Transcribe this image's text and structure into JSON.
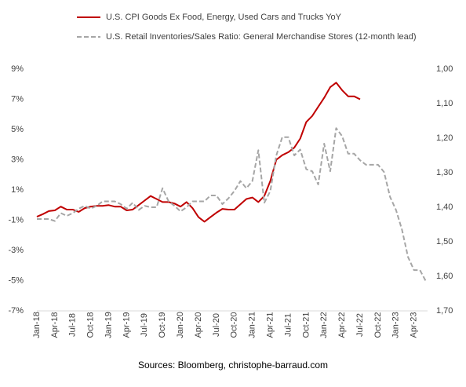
{
  "chart_data": {
    "type": "line",
    "source": "Sources: Bloomberg, christophe-barraud.com",
    "categories": [
      "Jan-18",
      null,
      null,
      "Apr-18",
      null,
      null,
      "Jul-18",
      null,
      null,
      "Oct-18",
      null,
      null,
      "Jan-19",
      null,
      null,
      "Apr-19",
      null,
      null,
      "Jul-19",
      null,
      null,
      "Oct-19",
      null,
      null,
      "Jan-20",
      null,
      null,
      "Apr-20",
      null,
      null,
      "Jul-20",
      null,
      null,
      "Oct-20",
      null,
      null,
      "Jan-21",
      null,
      null,
      "Apr-21",
      null,
      null,
      "Jul-21",
      null,
      null,
      "Oct-21",
      null,
      null,
      "Jan-22",
      null,
      null,
      "Apr-22",
      null,
      null,
      "Jul-22",
      null,
      null,
      "Oct-22",
      null,
      null,
      "Jan-23",
      null,
      null,
      "Apr-23",
      null,
      null
    ],
    "series": [
      {
        "name": "U.S. CPI Goods Ex Food, Energy, Used Cars and Trucks YoY",
        "color": "#c00000",
        "dashed": false,
        "axis": "y",
        "values": [
          -0.77,
          -0.6,
          -0.4,
          -0.35,
          -0.1,
          -0.3,
          -0.3,
          -0.45,
          -0.2,
          -0.1,
          -0.05,
          -0.05,
          0,
          -0.1,
          -0.1,
          -0.35,
          -0.3,
          0,
          0.3,
          0.6,
          0.4,
          0.2,
          0.2,
          0.1,
          -0.1,
          0.2,
          -0.2,
          -0.8,
          -1.1,
          -0.8,
          -0.5,
          -0.25,
          -0.3,
          -0.3,
          0.05,
          0.4,
          0.5,
          0.2,
          0.6,
          1.6,
          3.0,
          3.3,
          3.5,
          3.8,
          4.4,
          5.5,
          5.9,
          6.5,
          7.1,
          7.8,
          8.1,
          7.6,
          7.2,
          7.2,
          7.0,
          null,
          null,
          null,
          null,
          null,
          null,
          null,
          null,
          null,
          null,
          null
        ]
      },
      {
        "name": "U.S. Retail Inventories/Sales Ratio: General Merchandise Stores (12-month lead)",
        "color": "#a6a6a6",
        "dashed": true,
        "axis": "y2",
        "values": [
          1.434,
          1.434,
          1.434,
          1.44,
          1.417,
          1.425,
          1.417,
          1.404,
          1.396,
          1.404,
          1.396,
          1.383,
          1.383,
          1.383,
          1.391,
          1.404,
          1.387,
          1.408,
          1.396,
          1.4,
          1.4,
          1.345,
          1.383,
          1.396,
          1.412,
          1.4,
          1.383,
          1.383,
          1.383,
          1.366,
          1.366,
          1.391,
          1.374,
          1.353,
          1.324,
          1.345,
          1.324,
          1.235,
          1.387,
          1.353,
          1.25,
          1.197,
          1.197,
          1.25,
          1.233,
          1.29,
          1.296,
          1.334,
          1.216,
          1.296,
          1.171,
          1.194,
          1.245,
          1.245,
          1.264,
          1.277,
          1.277,
          1.277,
          1.298,
          1.37,
          1.408,
          1.465,
          1.544,
          1.582,
          1.582,
          1.615
        ]
      }
    ],
    "ylim": [
      -7,
      9
    ],
    "yticks": [
      {
        "value": 9,
        "label": "9%"
      },
      {
        "value": 7,
        "label": "7%"
      },
      {
        "value": 5,
        "label": "5%"
      },
      {
        "value": 3,
        "label": "3%"
      },
      {
        "value": 1,
        "label": "1%"
      },
      {
        "value": -1,
        "label": "-1%"
      },
      {
        "value": -3,
        "label": "-3%"
      },
      {
        "value": -5,
        "label": "-5%"
      },
      {
        "value": -7,
        "label": "-7%"
      }
    ],
    "y2lim": [
      1.7,
      1.0
    ],
    "y2ticks": [
      {
        "value": 1.0,
        "label": "1,00"
      },
      {
        "value": 1.1,
        "label": "1,10"
      },
      {
        "value": 1.2,
        "label": "1,20"
      },
      {
        "value": 1.3,
        "label": "1,30"
      },
      {
        "value": 1.4,
        "label": "1,40"
      },
      {
        "value": 1.5,
        "label": "1,50"
      },
      {
        "value": 1.6,
        "label": "1,60"
      },
      {
        "value": 1.7,
        "label": "1,70"
      }
    ],
    "legend": "top"
  }
}
